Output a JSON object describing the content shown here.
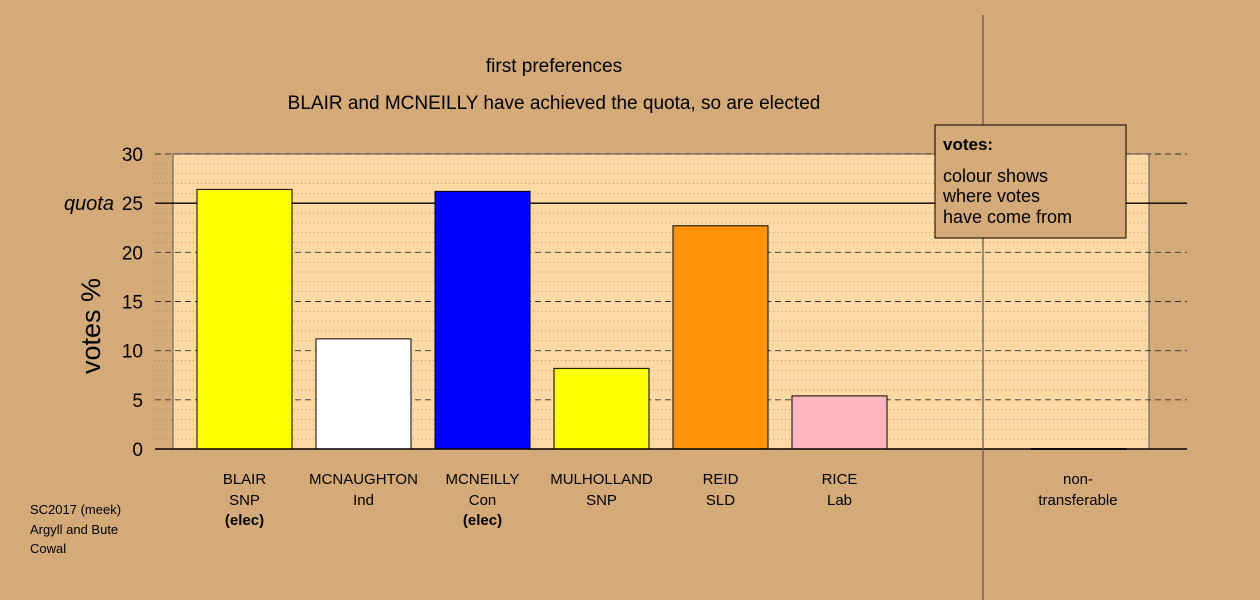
{
  "chart_data": {
    "type": "bar",
    "title": "first preferences",
    "subtitle": "BLAIR and MCNEILLY have achieved the quota, so are elected",
    "ylabel": "votes %",
    "ylim": [
      0,
      30
    ],
    "yticks": [
      "0",
      "5",
      "10",
      "15",
      "20",
      "25",
      "30"
    ],
    "quota_label": "quota",
    "quota": 25,
    "categories": [
      {
        "name": "BLAIR",
        "party": "SNP",
        "status": "(elec)",
        "value": 26.4,
        "color": "#ffff00"
      },
      {
        "name": "MCNAUGHTON",
        "party": "Ind",
        "status": "",
        "value": 11.2,
        "color": "#ffffff"
      },
      {
        "name": "MCNEILLY",
        "party": "Con",
        "status": "(elec)",
        "value": 26.2,
        "color": "#0000ff"
      },
      {
        "name": "MULHOLLAND",
        "party": "SNP",
        "status": "",
        "value": 8.2,
        "color": "#ffff00"
      },
      {
        "name": "REID",
        "party": "SLD",
        "status": "",
        "value": 22.7,
        "color": "#ff9309"
      },
      {
        "name": "RICE",
        "party": "Lab",
        "status": "",
        "value": 5.4,
        "color": "#ffb6c1"
      }
    ],
    "nontransferable": {
      "label_line1": "non-",
      "label_line2": "transferable",
      "value": 0
    },
    "legend": {
      "title": "votes:",
      "lines": [
        "colour shows",
        "where votes",
        "have come from"
      ],
      "placement": "top-right"
    },
    "grid": true,
    "plot_background": "#ffd9a3",
    "page_background": "#d4aa78"
  },
  "footer": {
    "line1": "SC2017 (meek)",
    "line2": "Argyll and Bute",
    "line3": "Cowal"
  }
}
